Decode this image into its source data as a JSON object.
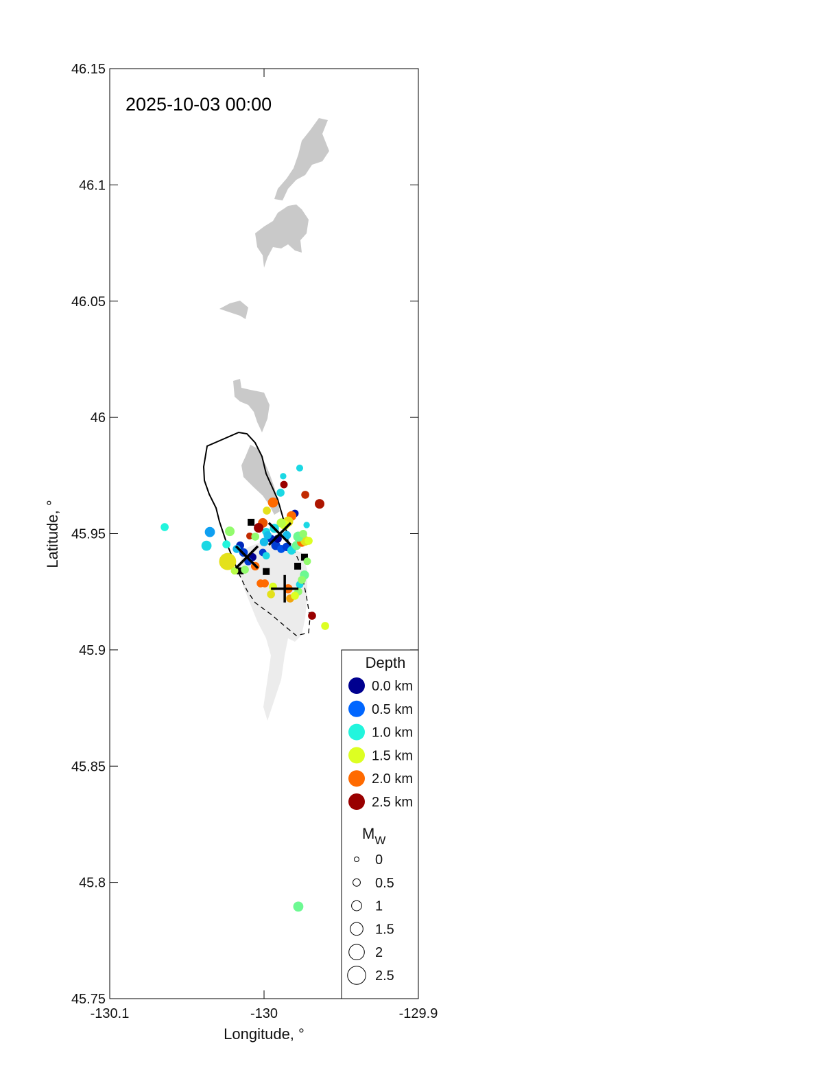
{
  "chart_data": {
    "type": "scatter",
    "annotation": "2025-10-03 00:00",
    "xlabel": "Longitude, °",
    "ylabel": "Latitude, °",
    "xlim": [
      -130.1,
      -129.9
    ],
    "ylim": [
      45.75,
      46.15
    ],
    "xticks": [
      "-130.1",
      "-130",
      "-129.9"
    ],
    "xtick_values": [
      -130.1,
      -130.0,
      -129.9
    ],
    "yticks": [
      "46.15",
      "46.1",
      "46.05",
      "46",
      "45.95",
      "45.9",
      "45.85",
      "45.8",
      "45.75"
    ],
    "ytick_values": [
      46.15,
      46.1,
      46.05,
      46.0,
      45.95,
      45.9,
      45.85,
      45.8,
      45.75
    ],
    "grid": false,
    "legend_placement": "bottom-right",
    "depth_legend": {
      "title": "Depth",
      "items": [
        {
          "label": "0.0 km",
          "depth": 0.0,
          "color": "#00008f"
        },
        {
          "label": "0.5 km",
          "depth": 0.5,
          "color": "#0066ff"
        },
        {
          "label": "1.0 km",
          "depth": 1.0,
          "color": "#22f5dd"
        },
        {
          "label": "1.5 km",
          "depth": 1.5,
          "color": "#ddff22"
        },
        {
          "label": "2.0 km",
          "depth": 2.0,
          "color": "#ff6a00"
        },
        {
          "label": "2.5 km",
          "depth": 2.5,
          "color": "#990000"
        }
      ]
    },
    "mag_legend": {
      "title": "M",
      "title_sub": "W",
      "items": [
        {
          "label": "0",
          "mag": 0
        },
        {
          "label": "0.5",
          "mag": 0.5
        },
        {
          "label": "1",
          "mag": 1
        },
        {
          "label": "1.5",
          "mag": 1.5
        },
        {
          "label": "2",
          "mag": 2
        },
        {
          "label": "2.5",
          "mag": 2.5
        }
      ]
    },
    "event_fields": [
      "lon",
      "lat",
      "depth_km",
      "mw"
    ],
    "events": [
      [
        -130.0644,
        45.9528,
        1.0,
        0.6
      ],
      [
        -130.0351,
        45.9507,
        0.7,
        1.0
      ],
      [
        -130.0373,
        45.9448,
        0.9,
        1.0
      ],
      [
        -130.0222,
        45.951,
        1.3,
        0.9
      ],
      [
        -130.0244,
        45.9454,
        1.0,
        0.6
      ],
      [
        -130.0236,
        45.938,
        1.6,
        2.3
      ],
      [
        -129.9769,
        45.9782,
        0.9,
        0.4
      ],
      [
        -129.9876,
        45.9747,
        0.9,
        0.3
      ],
      [
        -129.9871,
        45.9711,
        2.6,
        0.5
      ],
      [
        -129.9893,
        45.9676,
        0.9,
        0.6
      ],
      [
        -129.9733,
        45.9667,
        2.3,
        0.6
      ],
      [
        -129.964,
        45.9628,
        2.4,
        0.9
      ],
      [
        -129.9942,
        45.9634,
        2.0,
        1.0
      ],
      [
        -129.9982,
        45.9599,
        1.6,
        0.6
      ],
      [
        -129.9689,
        45.9147,
        2.6,
        0.6
      ],
      [
        -129.9604,
        45.9103,
        1.5,
        0.6
      ],
      [
        -129.9778,
        45.7896,
        1.2,
        1.0
      ],
      [
        -129.9724,
        45.9537,
        0.9,
        0.3
      ],
      [
        -129.98,
        45.9587,
        0.1,
        0.5
      ],
      [
        -129.9822,
        45.9576,
        2.0,
        0.9
      ],
      [
        -129.9844,
        45.9552,
        1.6,
        1.0
      ],
      [
        -129.9866,
        45.9537,
        1.5,
        0.9
      ],
      [
        -129.9889,
        45.9546,
        1.4,
        0.8
      ],
      [
        -129.9933,
        45.9523,
        0.9,
        0.8
      ],
      [
        -129.9986,
        45.9508,
        0.9,
        0.6
      ],
      [
        -130.0008,
        45.9546,
        2.1,
        0.9
      ],
      [
        -130.0035,
        45.9525,
        2.6,
        0.9
      ],
      [
        -130.0093,
        45.949,
        2.3,
        0.4
      ],
      [
        -130.0057,
        45.9487,
        1.3,
        0.6
      ],
      [
        -129.9955,
        45.9478,
        0.2,
        0.6
      ],
      [
        -130.0,
        45.9464,
        0.8,
        0.7
      ],
      [
        -129.9924,
        45.9449,
        0.3,
        0.8
      ],
      [
        -129.9889,
        45.9434,
        0.4,
        0.6
      ],
      [
        -129.9853,
        45.9443,
        0.3,
        0.7
      ],
      [
        -129.9822,
        45.9428,
        0.9,
        0.7
      ],
      [
        -129.979,
        45.9449,
        1.2,
        0.8
      ],
      [
        -129.9755,
        45.9464,
        2.0,
        0.9
      ],
      [
        -129.9733,
        45.9469,
        1.6,
        0.9
      ],
      [
        -129.9778,
        45.9487,
        1.2,
        1.0
      ],
      [
        -129.9746,
        45.9499,
        1.3,
        0.6
      ],
      [
        -129.9711,
        45.9469,
        1.5,
        0.6
      ],
      [
        -129.9853,
        45.9493,
        0.8,
        0.7
      ],
      [
        -129.9911,
        45.9478,
        0.0,
        0.6
      ],
      [
        -129.9977,
        45.9493,
        0.8,
        0.6
      ],
      [
        -130.0155,
        45.9449,
        0.2,
        0.6
      ],
      [
        -130.0133,
        45.9419,
        0.3,
        0.7
      ],
      [
        -130.0177,
        45.9434,
        0.8,
        0.6
      ],
      [
        -130.0075,
        45.9399,
        0.0,
        0.6
      ],
      [
        -130.0102,
        45.9381,
        0.3,
        0.6
      ],
      [
        -130.0057,
        45.936,
        2.0,
        0.7
      ],
      [
        -130.0124,
        45.9345,
        1.3,
        0.6
      ],
      [
        -130.0191,
        45.934,
        1.4,
        0.5
      ],
      [
        -130.0008,
        45.9419,
        0.3,
        0.5
      ],
      [
        -129.9986,
        45.9405,
        0.9,
        0.5
      ],
      [
        -130.0022,
        45.9286,
        2.0,
        0.6
      ],
      [
        -129.9995,
        45.9286,
        2.0,
        0.6
      ],
      [
        -129.9955,
        45.9239,
        1.6,
        0.6
      ],
      [
        -129.9942,
        45.9272,
        1.5,
        0.6
      ],
      [
        -129.9844,
        45.9263,
        2.0,
        0.8
      ],
      [
        -129.9831,
        45.9221,
        1.8,
        0.6
      ],
      [
        -129.9778,
        45.9251,
        1.3,
        0.6
      ],
      [
        -129.9769,
        45.9281,
        0.9,
        0.5
      ],
      [
        -129.972,
        45.9381,
        1.3,
        0.5
      ],
      [
        -129.9738,
        45.9322,
        1.2,
        0.8
      ],
      [
        -129.9755,
        45.9301,
        1.3,
        0.6
      ],
      [
        -129.98,
        45.9233,
        1.5,
        0.6
      ]
    ],
    "x_markers": [
      [
        -129.9898,
        45.9499
      ],
      [
        -130.0111,
        45.9399
      ]
    ],
    "plus_markers": [
      [
        -129.9866,
        45.9263
      ]
    ],
    "square_markers": [
      [
        -130.0084,
        45.9549
      ],
      [
        -129.9986,
        45.9337
      ],
      [
        -129.9738,
        45.9399
      ],
      [
        -129.9782,
        45.936
      ],
      [
        -130.0155,
        45.934
      ]
    ]
  }
}
